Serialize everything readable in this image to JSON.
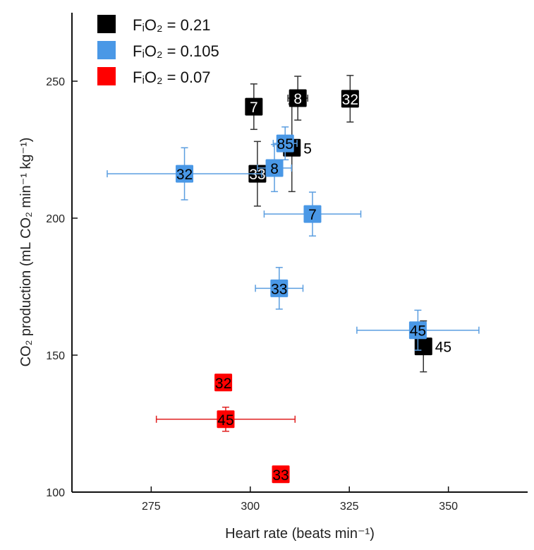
{
  "chart_data": {
    "type": "scatter",
    "title": "",
    "xlabel": "Heart rate (beats min⁻¹)",
    "ylabel": "CO₂ production (mL CO₂ min⁻¹ kg⁻¹)",
    "xlim": [
      255,
      370
    ],
    "ylim": [
      100,
      275
    ],
    "xticks": [
      275,
      300,
      325,
      350
    ],
    "yticks": [
      100,
      150,
      200,
      250
    ],
    "grid": false,
    "legend_position": "top-left",
    "series": [
      {
        "name": "FᵢO₂ = 0.21",
        "color": "#000000",
        "text_color": "#ffffff",
        "error_color": "#333333",
        "points": [
          {
            "label": "7",
            "x": 300.9,
            "y": 240.7,
            "xerr": 0,
            "yerr": 8.3
          },
          {
            "label": "8",
            "x": 312.0,
            "y": 243.8,
            "xerr": 2.5,
            "yerr": 8.0
          },
          {
            "label": "32",
            "x": 325.2,
            "y": 243.6,
            "xerr": 0,
            "yerr": 8.5
          },
          {
            "label": "5",
            "x": 310.5,
            "y": 225.7,
            "xerr": 0,
            "yerr": 16.0
          },
          {
            "label": "33",
            "x": 301.8,
            "y": 216.2,
            "xerr": 0,
            "yerr": 11.8
          },
          {
            "label": "45",
            "x": 343.7,
            "y": 153.2,
            "xerr": 0,
            "yerr": 9.3
          }
        ]
      },
      {
        "name": "FᵢO₂ = 0.105",
        "color": "#4a98e6",
        "text_color": "#000000",
        "error_color": "#5b9ee0",
        "points": [
          {
            "label": "85",
            "x": 308.8,
            "y": 227.3,
            "xerr": 3.0,
            "yerr": 6.0
          },
          {
            "label": "8",
            "x": 306.1,
            "y": 218.3,
            "xerr": 4.3,
            "yerr": 8.6
          },
          {
            "label": "32",
            "x": 283.4,
            "y": 216.2,
            "xerr": 19.5,
            "yerr": 9.5
          },
          {
            "label": "7",
            "x": 315.7,
            "y": 201.5,
            "xerr": 12.2,
            "yerr": 8.0
          },
          {
            "label": "33",
            "x": 307.3,
            "y": 174.4,
            "xerr": 6.0,
            "yerr": 7.6
          },
          {
            "label": "45",
            "x": 342.3,
            "y": 159.1,
            "xerr": 15.4,
            "yerr": 7.3
          }
        ]
      },
      {
        "name": "FᵢO₂ = 0.07",
        "color": "#ff0000",
        "text_color": "#000000",
        "error_color": "#e02020",
        "points": [
          {
            "label": "32",
            "x": 293.2,
            "y": 140.0,
            "xerr": 0,
            "yerr": 0
          },
          {
            "label": "45",
            "x": 293.8,
            "y": 126.6,
            "xerr": 17.5,
            "yerr": 4.4
          },
          {
            "label": "33",
            "x": 307.7,
            "y": 106.5,
            "xerr": 0,
            "yerr": 0
          }
        ]
      }
    ]
  }
}
